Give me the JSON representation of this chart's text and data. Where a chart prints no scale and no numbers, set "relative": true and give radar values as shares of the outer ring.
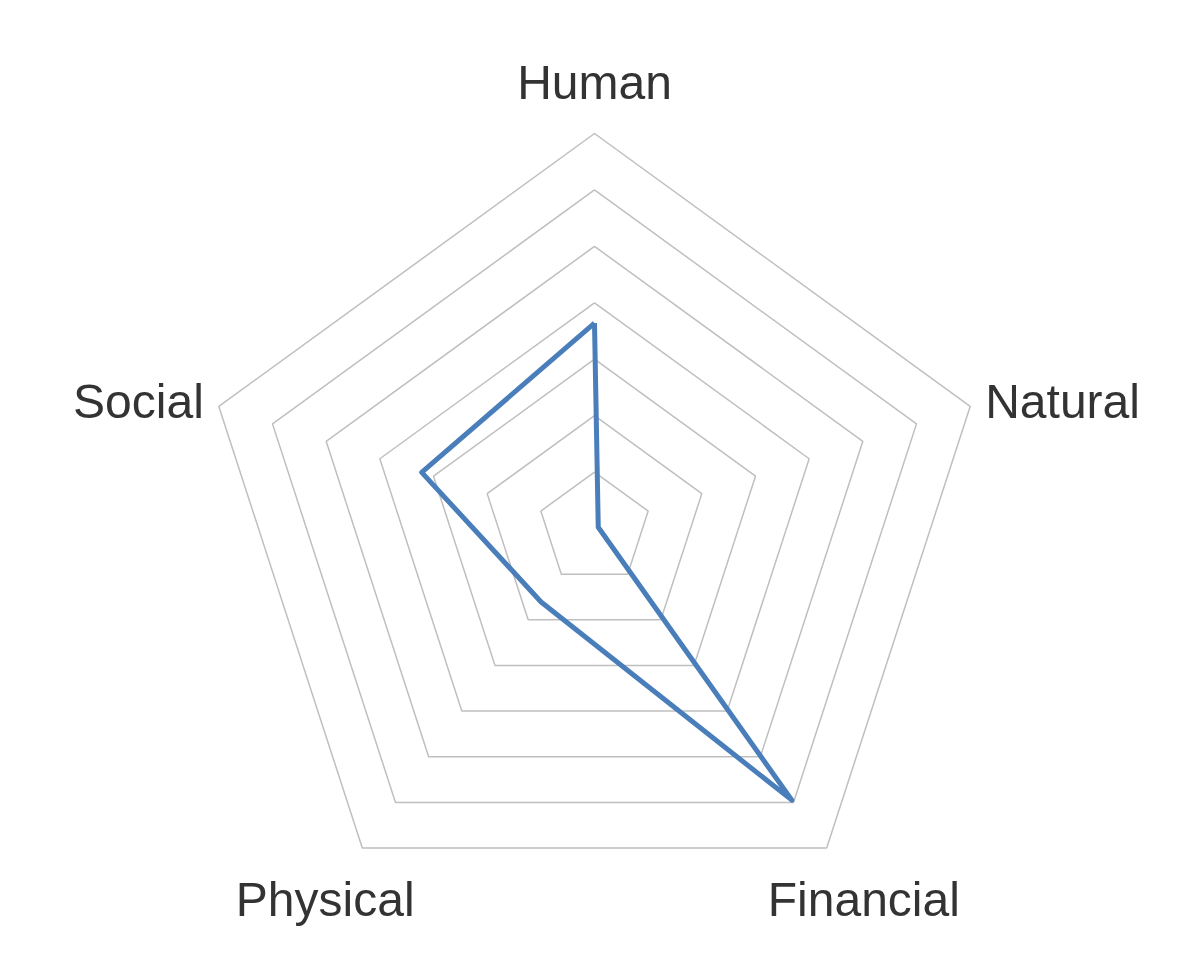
{
  "chart_data": {
    "type": "radar",
    "relative": true,
    "grid": true,
    "categories": [
      "Human",
      "Natural",
      "Financial",
      "Physical",
      "Social"
    ],
    "series": [
      {
        "color": "#4a7ebb",
        "values": [
          0.52,
          0.01,
          0.85,
          0.23,
          0.46
        ]
      }
    ]
  }
}
